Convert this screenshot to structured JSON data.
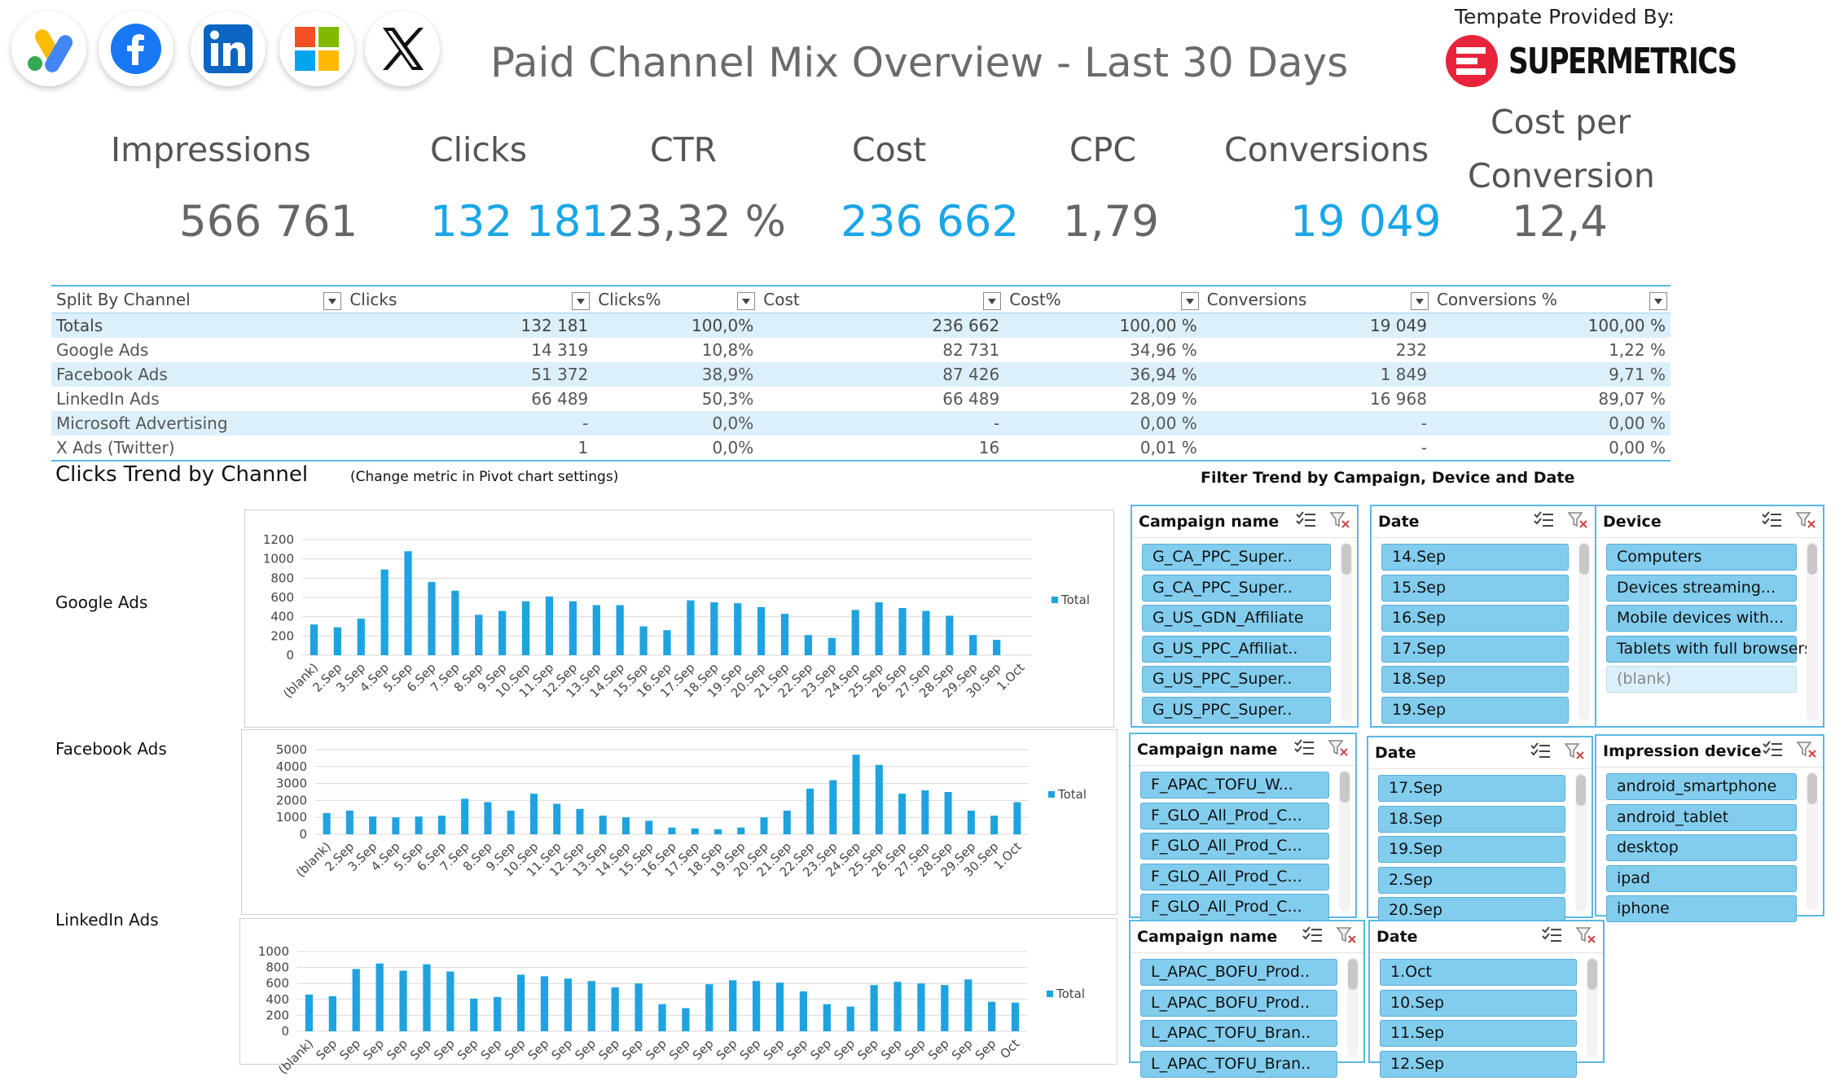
{
  "header": {
    "title": "Paid Channel Mix Overview - Last 30 Days",
    "provided_by": "Tempate Provided By:",
    "brand": "SUPERMETRICS",
    "channel_logos": [
      "google-ads-icon",
      "facebook-icon",
      "linkedin-icon",
      "microsoft-icon",
      "x-twitter-icon"
    ]
  },
  "kpis": [
    {
      "label": "Impressions",
      "value": "566 761",
      "color": "grey"
    },
    {
      "label": "Clicks",
      "value": "132 181",
      "color": "blue"
    },
    {
      "label": "CTR",
      "value": "23,32 %",
      "color": "grey"
    },
    {
      "label": "Cost",
      "value": "236 662",
      "color": "blue"
    },
    {
      "label": "CPC",
      "value": "1,79",
      "color": "grey"
    },
    {
      "label": "Conversions",
      "value": "19 049",
      "color": "blue"
    },
    {
      "label_line1": "Cost per",
      "label_line2": "Conversion",
      "value": "12,4",
      "color": "grey"
    }
  ],
  "channel_table": {
    "headers": [
      "Split By Channel",
      "Clicks",
      "Clicks%",
      "Cost",
      "Cost%",
      "Conversions",
      "Conversions %"
    ],
    "totals": [
      "Totals",
      "132 181",
      "100,0%",
      "236 662",
      "100,00 %",
      "19 049",
      "100,00 %"
    ],
    "rows": [
      [
        "Google Ads",
        "14 319",
        "10,8%",
        "82 731",
        "34,96 %",
        "232",
        "1,22 %"
      ],
      [
        "Facebook Ads",
        "51 372",
        "38,9%",
        "87 426",
        "36,94 %",
        "1 849",
        "9,71 %"
      ],
      [
        "LinkedIn Ads",
        "66 489",
        "50,3%",
        "66 489",
        "28,09 %",
        "16 968",
        "89,07 %"
      ],
      [
        "Microsoft Advertising",
        "-",
        "0,0%",
        "-",
        "0,00 %",
        "-",
        "0,00 %"
      ],
      [
        "X Ads (Twitter)",
        "1",
        "0,0%",
        "16",
        "0,01 %",
        "-",
        "0,00 %"
      ]
    ]
  },
  "sections": {
    "clicks_trend_title": "Clicks Trend by Channel",
    "metric_note": "(Change metric in Pivot chart settings)",
    "filter_title": "Filter Trend by Campaign, Device and Date"
  },
  "chart_data": [
    {
      "type": "bar",
      "channel_label": "Google Ads",
      "legend": "Total",
      "categories": [
        "(blank)",
        "2.Sep",
        "3.Sep",
        "4.Sep",
        "5.Sep",
        "6.Sep",
        "7.Sep",
        "8.Sep",
        "9.Sep",
        "10.Sep",
        "11.Sep",
        "12.Sep",
        "13.Sep",
        "14.Sep",
        "15.Sep",
        "16.Sep",
        "17.Sep",
        "18.Sep",
        "19.Sep",
        "20.Sep",
        "21.Sep",
        "22.Sep",
        "23.Sep",
        "24.Sep",
        "25.Sep",
        "26.Sep",
        "27.Sep",
        "28.Sep",
        "29.Sep",
        "30.Sep",
        "1.Oct"
      ],
      "values": [
        320,
        290,
        380,
        890,
        1080,
        760,
        670,
        420,
        460,
        560,
        610,
        560,
        520,
        520,
        300,
        260,
        570,
        550,
        540,
        500,
        430,
        210,
        180,
        470,
        550,
        490,
        460,
        410,
        210,
        160,
        0
      ],
      "yticks": [
        0,
        200,
        400,
        600,
        800,
        1000,
        1200
      ],
      "ylim": [
        0,
        1200
      ]
    },
    {
      "type": "bar",
      "channel_label": "Facebook Ads",
      "legend": "Total",
      "categories": [
        "(blank)",
        "2.Sep",
        "3.Sep",
        "4.Sep",
        "5.Sep",
        "6.Sep",
        "7.Sep",
        "8.Sep",
        "9.Sep",
        "10.Sep",
        "11.Sep",
        "12.Sep",
        "13.Sep",
        "14.Sep",
        "15.Sep",
        "16.Sep",
        "17.Sep",
        "18.Sep",
        "19.Sep",
        "20.Sep",
        "21.Sep",
        "22.Sep",
        "23.Sep",
        "24.Sep",
        "25.Sep",
        "26.Sep",
        "27.Sep",
        "28.Sep",
        "29.Sep",
        "30.Sep",
        "1.Oct"
      ],
      "values": [
        1250,
        1400,
        1050,
        1000,
        1050,
        1100,
        2100,
        1900,
        1400,
        2400,
        1800,
        1500,
        1100,
        1000,
        800,
        400,
        350,
        300,
        400,
        1000,
        1400,
        2700,
        3200,
        4700,
        4100,
        2400,
        2600,
        2500,
        1400,
        1100,
        1900
      ],
      "yticks": [
        0,
        1000,
        2000,
        3000,
        4000,
        5000
      ],
      "ylim": [
        0,
        5000
      ]
    },
    {
      "type": "bar",
      "channel_label": "LinkedIn Ads",
      "legend": "Total",
      "categories": [
        "(blank)",
        "Sep",
        "Sep",
        "Sep",
        "Sep",
        "Sep",
        "Sep",
        "Sep",
        "Sep",
        "Sep",
        "Sep",
        "Sep",
        "Sep",
        "Sep",
        "Sep",
        "Sep",
        "Sep",
        "Sep",
        "Sep",
        "Sep",
        "Sep",
        "Sep",
        "Sep",
        "Sep",
        "Sep",
        "Sep",
        "Sep",
        "Sep",
        "Sep",
        "Sep",
        "Oct"
      ],
      "values": [
        460,
        440,
        780,
        850,
        760,
        840,
        750,
        410,
        430,
        710,
        690,
        660,
        630,
        550,
        600,
        340,
        290,
        590,
        640,
        630,
        610,
        500,
        340,
        310,
        580,
        620,
        600,
        580,
        650,
        370,
        360
      ],
      "yticks": [
        0,
        200,
        400,
        600,
        800,
        1000
      ],
      "ylim": [
        0,
        1000
      ]
    }
  ],
  "slicers": [
    {
      "id": "g-campaign",
      "title": "Campaign name",
      "items": [
        "G_CA_PPC_Super..",
        "G_CA_PPC_Super..",
        "G_US_GDN_Affiliate",
        "G_US_PPC_Affiliat..",
        "G_US_PPC_Super..",
        "G_US_PPC_Super.."
      ]
    },
    {
      "id": "g-date",
      "title": "Date",
      "items": [
        "14.Sep",
        "15.Sep",
        "16.Sep",
        "17.Sep",
        "18.Sep",
        "19.Sep"
      ]
    },
    {
      "id": "g-device",
      "title": "Device",
      "items": [
        "Computers",
        "Devices streaming...",
        "Mobile devices with...",
        "Tablets with full browsers",
        "(blank)"
      ]
    },
    {
      "id": "f-campaign",
      "title": "Campaign name",
      "items": [
        "F_APAC_TOFU_W...",
        "F_GLO_All_Prod_C...",
        "F_GLO_All_Prod_C...",
        "F_GLO_All_Prod_C...",
        "F_GLO_All_Prod_C..."
      ]
    },
    {
      "id": "f-date",
      "title": "Date",
      "items": [
        "17.Sep",
        "18.Sep",
        "19.Sep",
        "2.Sep",
        "20.Sep"
      ]
    },
    {
      "id": "f-device",
      "title": "Impression device",
      "items": [
        "android_smartphone",
        "android_tablet",
        "desktop",
        "ipad",
        "iphone"
      ]
    },
    {
      "id": "l-campaign",
      "title": "Campaign name",
      "items": [
        "L_APAC_BOFU_Prod..",
        "L_APAC_BOFU_Prod..",
        "L_APAC_TOFU_Bran..",
        "L_APAC_TOFU_Bran.."
      ]
    },
    {
      "id": "l-date",
      "title": "Date",
      "items": [
        "1.Oct",
        "10.Sep",
        "11.Sep",
        "12.Sep"
      ]
    }
  ],
  "colors": {
    "accent": "#1aa6e8",
    "bar": "#1fa3e0",
    "slicer_item": "#82cdee",
    "row_alt": "#dcf0fb"
  }
}
